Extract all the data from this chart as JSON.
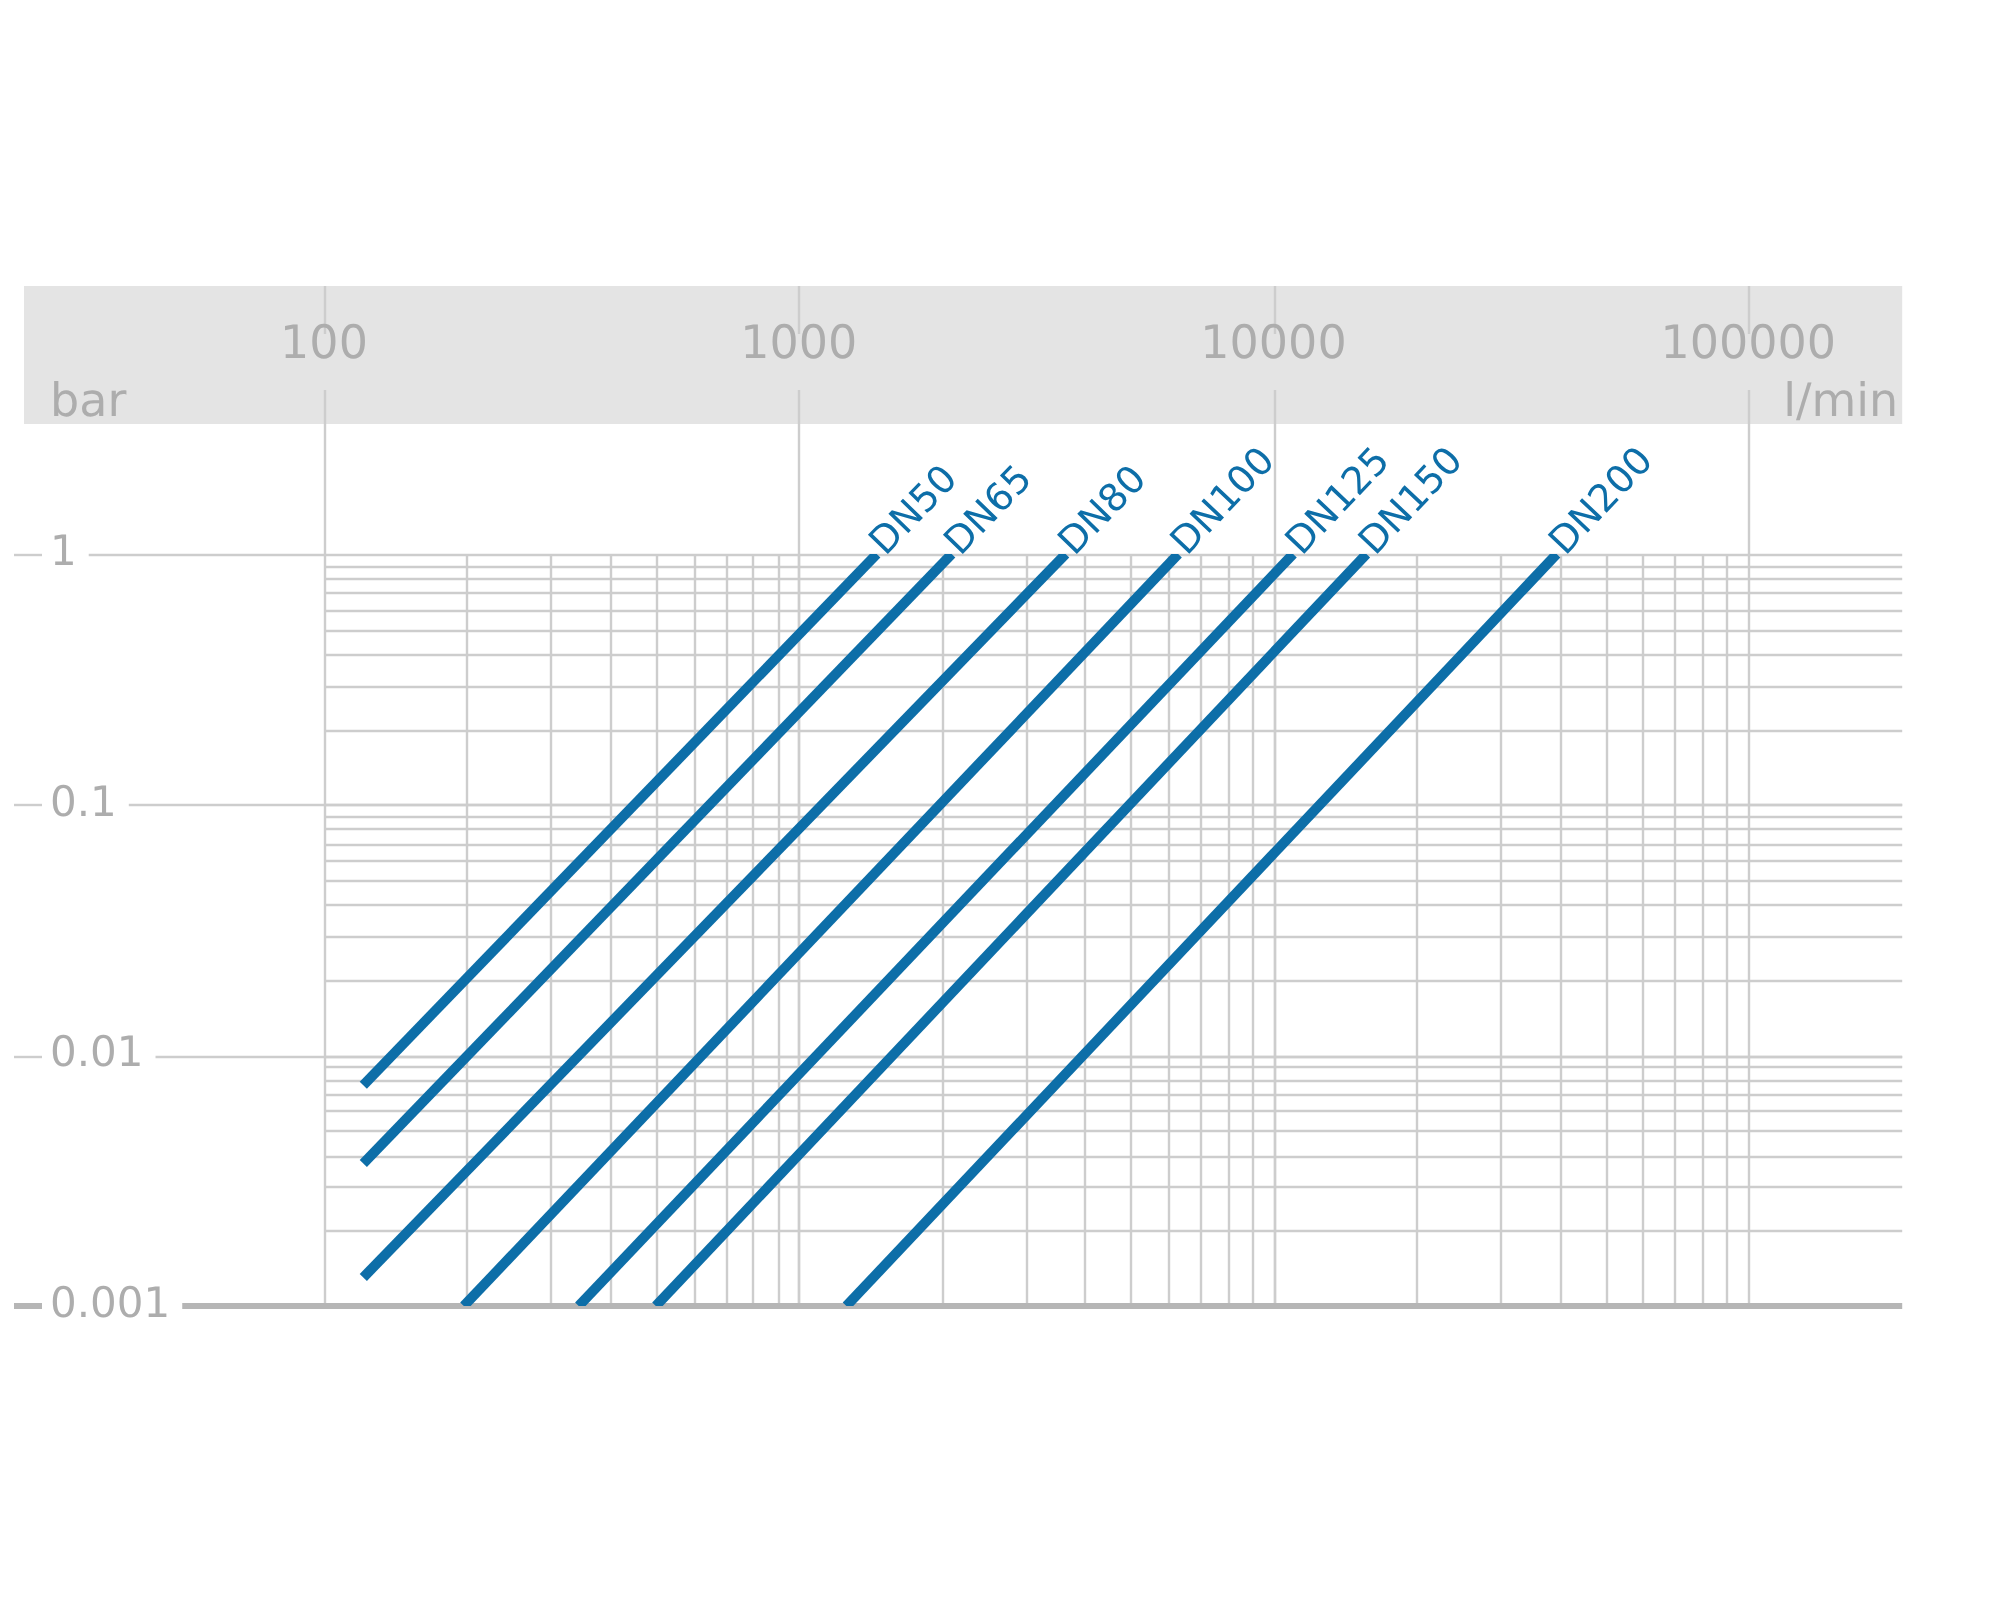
{
  "chart_data": {
    "type": "line",
    "xlabel": "l/min",
    "ylabel": "bar",
    "log": "xy",
    "xlim": [
      100,
      100000
    ],
    "xticks": [
      100,
      1000,
      10000,
      100000
    ],
    "ylim": [
      0.001,
      1
    ],
    "yticks": [
      0.001,
      0.01,
      0.1,
      1
    ],
    "grid": true,
    "series": [
      {
        "name": "DN50",
        "color": "#0d6ea8",
        "x": [
          121,
          1460
        ],
        "values": [
          0.0076,
          1
        ]
      },
      {
        "name": "DN65",
        "color": "#0d6ea8",
        "x": [
          121,
          2100
        ],
        "values": [
          0.0037,
          1
        ]
      },
      {
        "name": "DN80",
        "color": "#0d6ea8",
        "x": [
          121,
          3650
        ],
        "values": [
          0.0013,
          1
        ]
      },
      {
        "name": "DN100",
        "color": "#0d6ea8",
        "x": [
          197,
          6300
        ],
        "values": [
          0.001,
          1
        ]
      },
      {
        "name": "DN125",
        "color": "#0d6ea8",
        "x": [
          344,
          11000
        ],
        "values": [
          0.001,
          1
        ]
      },
      {
        "name": "DN150",
        "color": "#0d6ea8",
        "x": [
          500,
          15700
        ],
        "values": [
          0.001,
          1
        ]
      },
      {
        "name": "DN200",
        "color": "#0d6ea8",
        "x": [
          1260,
          39500
        ],
        "values": [
          0.001,
          1
        ]
      }
    ]
  }
}
